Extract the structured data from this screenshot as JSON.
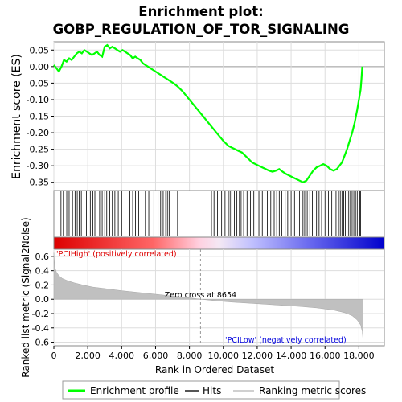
{
  "chart_data": {
    "type": "line",
    "title_line1": "Enrichment plot:",
    "title_line2": "GOBP_REGULATION_OF_TOR_SIGNALING",
    "es_ylabel": "Enrichment score (ES)",
    "metric_ylabel": "Ranked list metric (Signal2Noise)",
    "xlabel": "Rank in Ordered Dataset",
    "xlim": [
      0,
      19500
    ],
    "x_ticks": [
      0,
      2000,
      4000,
      6000,
      8000,
      10000,
      12000,
      14000,
      16000,
      18000
    ],
    "x_tick_labels": [
      "0",
      "2,000",
      "4,000",
      "6,000",
      "8,000",
      "10,000",
      "12,000",
      "14,000",
      "16,000",
      "18,000"
    ],
    "es_ylim": [
      -0.375,
      0.075
    ],
    "es_ticks": [
      0.05,
      0.0,
      -0.05,
      -0.1,
      -0.15,
      -0.2,
      -0.25,
      -0.3,
      -0.35
    ],
    "es_tick_labels": [
      "0.05",
      "0.00",
      "-0.05",
      "-0.10",
      "-0.15",
      "-0.20",
      "-0.25",
      "-0.30",
      "-0.35"
    ],
    "metric_ylim": [
      -0.65,
      0.7
    ],
    "metric_ticks": [
      0.6,
      0.4,
      0.2,
      0.0,
      -0.2,
      -0.4,
      -0.6
    ],
    "metric_tick_labels": [
      "0.6",
      "0.4",
      "0.2",
      "0.0",
      "-0.2",
      "-0.4",
      "-0.6"
    ],
    "series": [
      {
        "name": "Enrichment profile",
        "color": "#00ff00",
        "x": [
          0,
          150,
          300,
          450,
          600,
          750,
          900,
          1050,
          1200,
          1350,
          1500,
          1650,
          1800,
          1950,
          2100,
          2250,
          2400,
          2550,
          2700,
          2850,
          3000,
          3150,
          3300,
          3450,
          3600,
          3750,
          3900,
          4050,
          4200,
          4350,
          4500,
          4650,
          4800,
          4950,
          5100,
          5250,
          5400,
          5550,
          5700,
          5850,
          6000,
          6150,
          6300,
          6450,
          6600,
          6750,
          6900,
          7050,
          7300,
          7600,
          8000,
          8400,
          8800,
          9200,
          9600,
          10000,
          10300,
          10500,
          10700,
          10900,
          11100,
          11300,
          11500,
          11700,
          11900,
          12100,
          12300,
          12500,
          12700,
          12900,
          13100,
          13300,
          13500,
          13700,
          13900,
          14100,
          14300,
          14500,
          14700,
          14900,
          15100,
          15300,
          15500,
          15700,
          15900,
          16100,
          16300,
          16500,
          16700,
          16850,
          17000,
          17150,
          17300,
          17450,
          17600,
          17750,
          17900,
          18000,
          18100,
          18150,
          18200
        ],
        "y": [
          0.005,
          -0.005,
          -0.015,
          0.0,
          0.02,
          0.015,
          0.025,
          0.02,
          0.03,
          0.04,
          0.045,
          0.04,
          0.05,
          0.045,
          0.04,
          0.035,
          0.04,
          0.045,
          0.035,
          0.03,
          0.06,
          0.065,
          0.055,
          0.06,
          0.055,
          0.05,
          0.045,
          0.05,
          0.045,
          0.04,
          0.035,
          0.025,
          0.03,
          0.025,
          0.02,
          0.01,
          0.005,
          0.0,
          -0.005,
          -0.01,
          -0.015,
          -0.02,
          -0.025,
          -0.03,
          -0.035,
          -0.04,
          -0.045,
          -0.05,
          -0.06,
          -0.075,
          -0.1,
          -0.125,
          -0.15,
          -0.175,
          -0.2,
          -0.225,
          -0.24,
          -0.245,
          -0.25,
          -0.255,
          -0.26,
          -0.27,
          -0.28,
          -0.29,
          -0.295,
          -0.3,
          -0.305,
          -0.31,
          -0.315,
          -0.318,
          -0.315,
          -0.31,
          -0.318,
          -0.325,
          -0.33,
          -0.335,
          -0.34,
          -0.345,
          -0.35,
          -0.345,
          -0.33,
          -0.315,
          -0.305,
          -0.3,
          -0.295,
          -0.3,
          -0.31,
          -0.315,
          -0.31,
          -0.3,
          -0.29,
          -0.27,
          -0.25,
          -0.225,
          -0.2,
          -0.17,
          -0.13,
          -0.1,
          -0.07,
          -0.04,
          0.0
        ]
      },
      {
        "name": "Hits",
        "color": "#000000",
        "hit_positions": [
          420,
          560,
          760,
          900,
          1100,
          1250,
          1380,
          1500,
          1620,
          1780,
          1920,
          2150,
          2300,
          2420,
          2700,
          2850,
          3000,
          3120,
          3300,
          3450,
          3600,
          3800,
          4000,
          4200,
          4480,
          4650,
          4820,
          5000,
          5400,
          5600,
          5900,
          6150,
          6300,
          6450,
          6600,
          6700,
          6800,
          7300,
          9300,
          9450,
          9650,
          9900,
          10100,
          10300,
          10400,
          10500,
          10650,
          10800,
          10950,
          11050,
          11200,
          11400,
          11600,
          11800,
          12100,
          12300,
          12600,
          12800,
          13000,
          13150,
          13300,
          13450,
          13650,
          13800,
          14000,
          14200,
          14500,
          14700,
          14800,
          14950,
          15100,
          15250,
          15350,
          15500,
          15650,
          15800,
          16000,
          16200,
          16400,
          16650,
          16800,
          16900,
          17000,
          17100,
          17200,
          17300,
          17400,
          17500,
          17600,
          17700,
          17800,
          17900,
          18000,
          18050,
          18100
        ]
      },
      {
        "name": "Ranking metric scores",
        "color": "#c0c0c0",
        "x": [
          0,
          50,
          150,
          300,
          500,
          800,
          1200,
          1700,
          2300,
          3000,
          4000,
          5000,
          6000,
          7000,
          8000,
          8654,
          9500,
          10500,
          11500,
          12500,
          13500,
          14500,
          15500,
          16500,
          17200,
          17600,
          17900,
          18100,
          18200,
          18250
        ],
        "y": [
          0.65,
          0.45,
          0.38,
          0.33,
          0.29,
          0.26,
          0.23,
          0.2,
          0.17,
          0.15,
          0.12,
          0.095,
          0.07,
          0.045,
          0.02,
          0.0,
          -0.02,
          -0.04,
          -0.055,
          -0.07,
          -0.085,
          -0.1,
          -0.12,
          -0.15,
          -0.19,
          -0.23,
          -0.29,
          -0.36,
          -0.45,
          -0.6
        ]
      }
    ],
    "zero_cross_x": 8654,
    "zero_cross_label": "Zero cross at 8654",
    "high_label": "'PCIHigh' (positively correlated)",
    "low_label": "'PCILow' (negatively correlated)",
    "high_color": "#dd0000",
    "low_color": "#0000dd",
    "legend": {
      "items": [
        "Enrichment profile",
        "Hits",
        "Ranking metric scores"
      ],
      "placement": "bottom"
    },
    "grid": true
  }
}
